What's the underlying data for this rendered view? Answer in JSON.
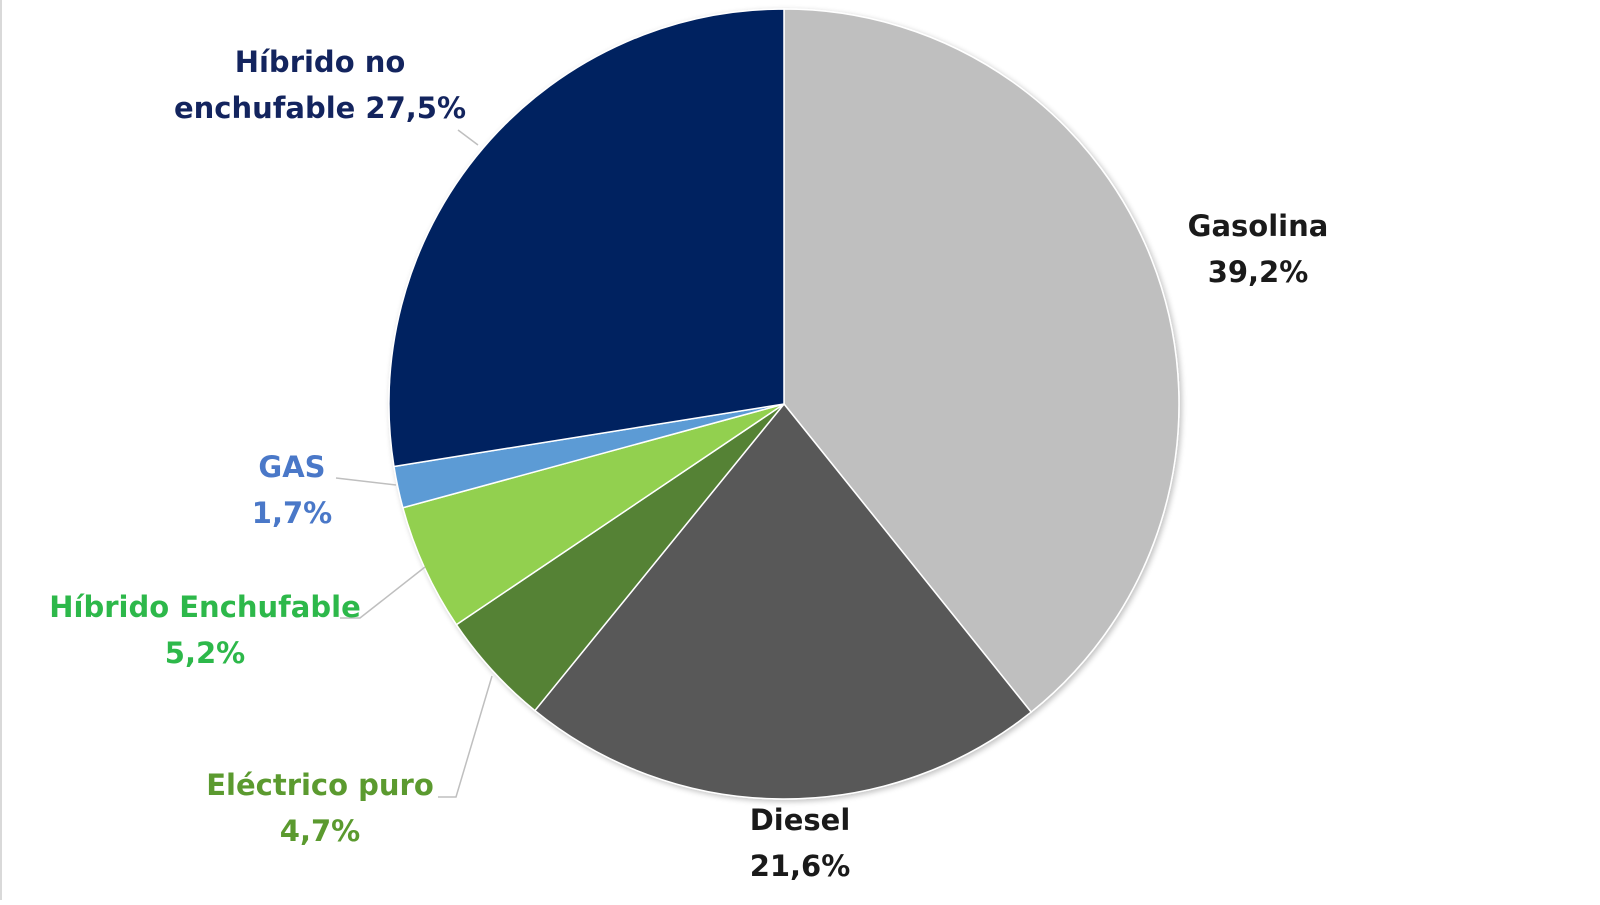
{
  "chart_data": {
    "type": "pie",
    "title": "",
    "unit": "%",
    "slices": [
      {
        "name": "Gasolina",
        "value": 39.2,
        "label_line1": "Gasolina",
        "label_line2": "39,2%",
        "color": "#bfbfbf",
        "label_color": "#1a1a1a"
      },
      {
        "name": "Diesel",
        "value": 21.6,
        "label_line1": "Diesel",
        "label_line2": "21,6%",
        "color": "#595959",
        "label_color": "#1a1a1a"
      },
      {
        "name": "Eléctrico puro",
        "value": 4.7,
        "label_line1": "Eléctrico puro",
        "label_line2": "4,7%",
        "color": "#548235",
        "label_color": "#5b9a2f"
      },
      {
        "name": "Híbrido Enchufable",
        "value": 5.2,
        "label_line1": "Híbrido Enchufable",
        "label_line2": "5,2%",
        "color": "#92d050",
        "label_color": "#2db84a"
      },
      {
        "name": "GAS",
        "value": 1.7,
        "label_line1": "GAS",
        "label_line2": "1,7%",
        "color": "#5b9bd5",
        "label_color": "#4a78c8"
      },
      {
        "name": "Híbrido no enchufable",
        "value": 27.5,
        "label_line1": "Híbrido no",
        "label_line2": "enchufable 27,5%",
        "color": "#002060",
        "label_color": "#13245e"
      }
    ]
  }
}
